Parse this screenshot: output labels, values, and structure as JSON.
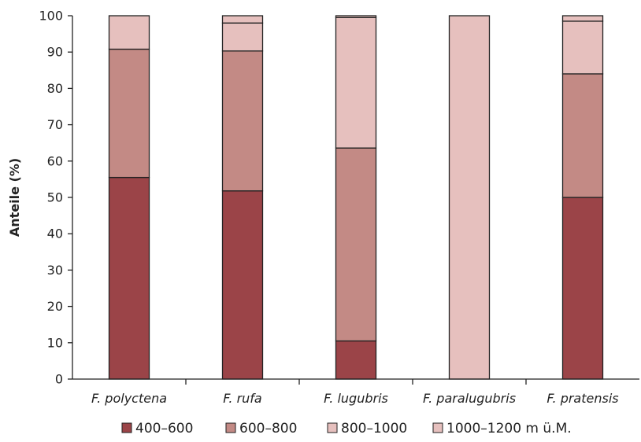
{
  "chart_data": {
    "type": "bar",
    "stacked": true,
    "ylabel": "Anteile (%)",
    "xlabel": "",
    "ylim": [
      0,
      100
    ],
    "yticks": [
      0,
      10,
      20,
      30,
      40,
      50,
      60,
      70,
      80,
      90,
      100
    ],
    "categories": [
      "F. polyctena",
      "F. rufa",
      "F. lugubris",
      "F. paralugubris",
      "F. pratensis"
    ],
    "series": [
      {
        "name": "400–600",
        "color": "#9b4448",
        "values": [
          55.5,
          51.8,
          10.5,
          0,
          50
        ]
      },
      {
        "name": "600–800",
        "color": "#c38a85",
        "values": [
          35.3,
          38.5,
          53.1,
          0,
          34
        ]
      },
      {
        "name": "800–1000",
        "color": "#e6c0be",
        "values": [
          9.2,
          7.7,
          35.9,
          100,
          14.5
        ]
      },
      {
        "name": "1000–1200 m ü.M.",
        "color": "#e6c0be",
        "values": [
          0,
          2.0,
          0.5,
          0,
          1.5
        ]
      }
    ],
    "grid": false,
    "legend": "bottom"
  }
}
